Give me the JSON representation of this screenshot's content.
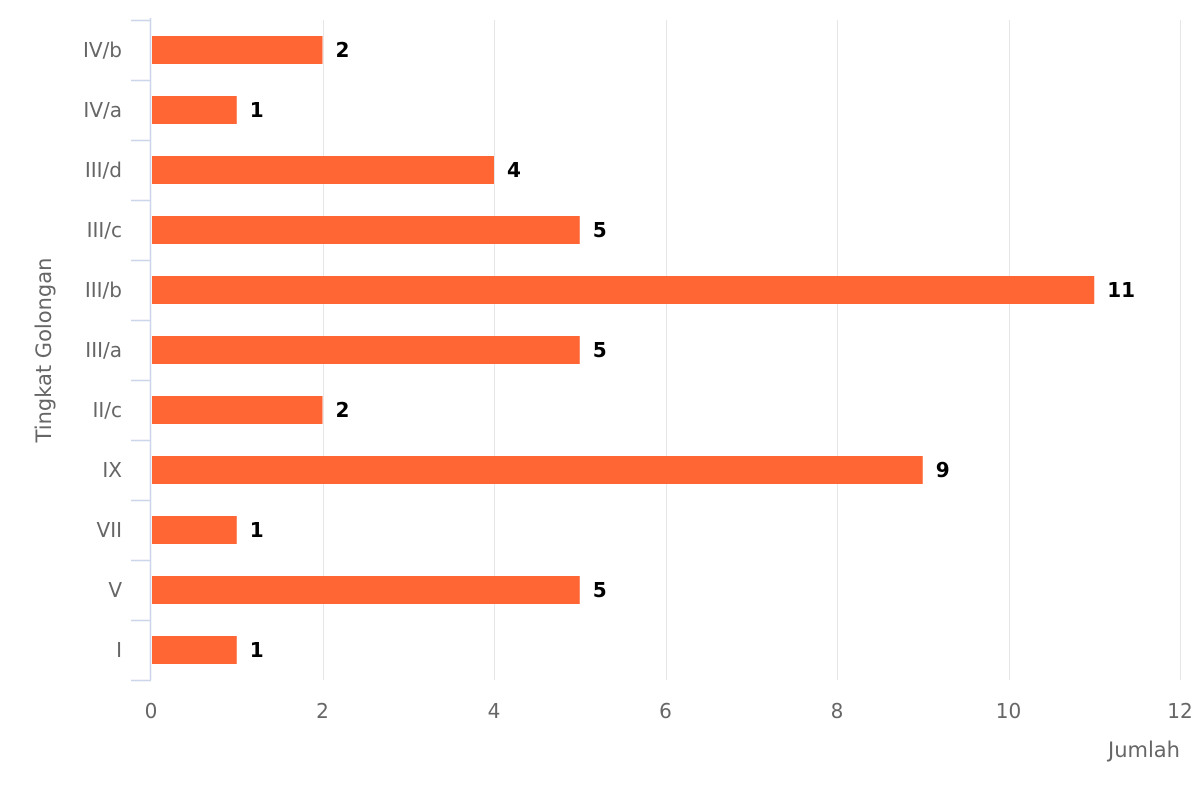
{
  "chart_data": {
    "type": "bar",
    "orientation": "horizontal",
    "categories": [
      "IV/b",
      "IV/a",
      "III/d",
      "III/c",
      "III/b",
      "III/a",
      "II/c",
      "IX",
      "VII",
      "V",
      "I"
    ],
    "values": [
      2,
      1,
      4,
      5,
      11,
      5,
      2,
      9,
      1,
      5,
      1
    ],
    "xlabel": "Jumlah",
    "ylabel": "Tingkat Golongan",
    "xlim": [
      0,
      12
    ],
    "xticks": [
      0,
      2,
      4,
      6,
      8,
      10,
      12
    ],
    "grid": "vertical",
    "legend": "none",
    "data_labels": true,
    "colors": {
      "bar": "#ff6633",
      "grid": "#e6e6e6",
      "axis": "#ccd6eb",
      "label": "#666666",
      "data_label": "#000000"
    }
  }
}
